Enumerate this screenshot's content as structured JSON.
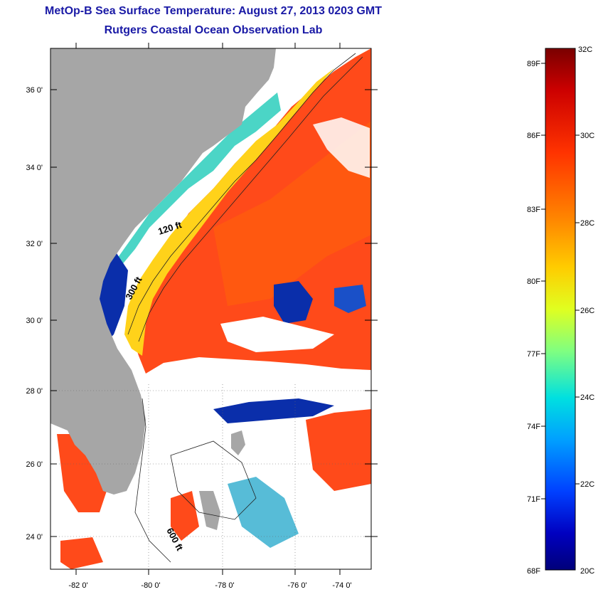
{
  "header": {
    "title": "MetOp-B Sea Surface Temperature:  August 27, 2013 0203 GMT",
    "subtitle": "Rutgers Coastal Ocean Observation Lab"
  },
  "map": {
    "lat_labels": [
      "36 0'",
      "34 0'",
      "32 0'",
      "30 0'",
      "28 0'",
      "26 0'",
      "24 0'"
    ],
    "lon_labels": [
      "-82 0'",
      "-80 0'",
      "-78 0'",
      "-76 0'",
      "-74 0'"
    ],
    "contour_labels": [
      "120 ft",
      "300 ft",
      "600 ft"
    ],
    "colors": {
      "land": "#a6a6a6",
      "cloud": "#ffffff",
      "warm": "#ff4a1a",
      "cool": "#0a2eaa"
    }
  },
  "colorbar": {
    "celsius_labels": [
      "32C",
      "30C",
      "28C",
      "26C",
      "24C",
      "22C",
      "20C"
    ],
    "fahrenheit_labels": [
      "89F",
      "86F",
      "83F",
      "80F",
      "77F",
      "74F",
      "71F",
      "68F"
    ],
    "gradient": [
      "#7a0000",
      "#cc0000",
      "#ff3300",
      "#ff8800",
      "#ffcc00",
      "#e0ff20",
      "#80ff80",
      "#00e0e0",
      "#00a0ff",
      "#0040ff",
      "#0000c0",
      "#00007a"
    ]
  }
}
